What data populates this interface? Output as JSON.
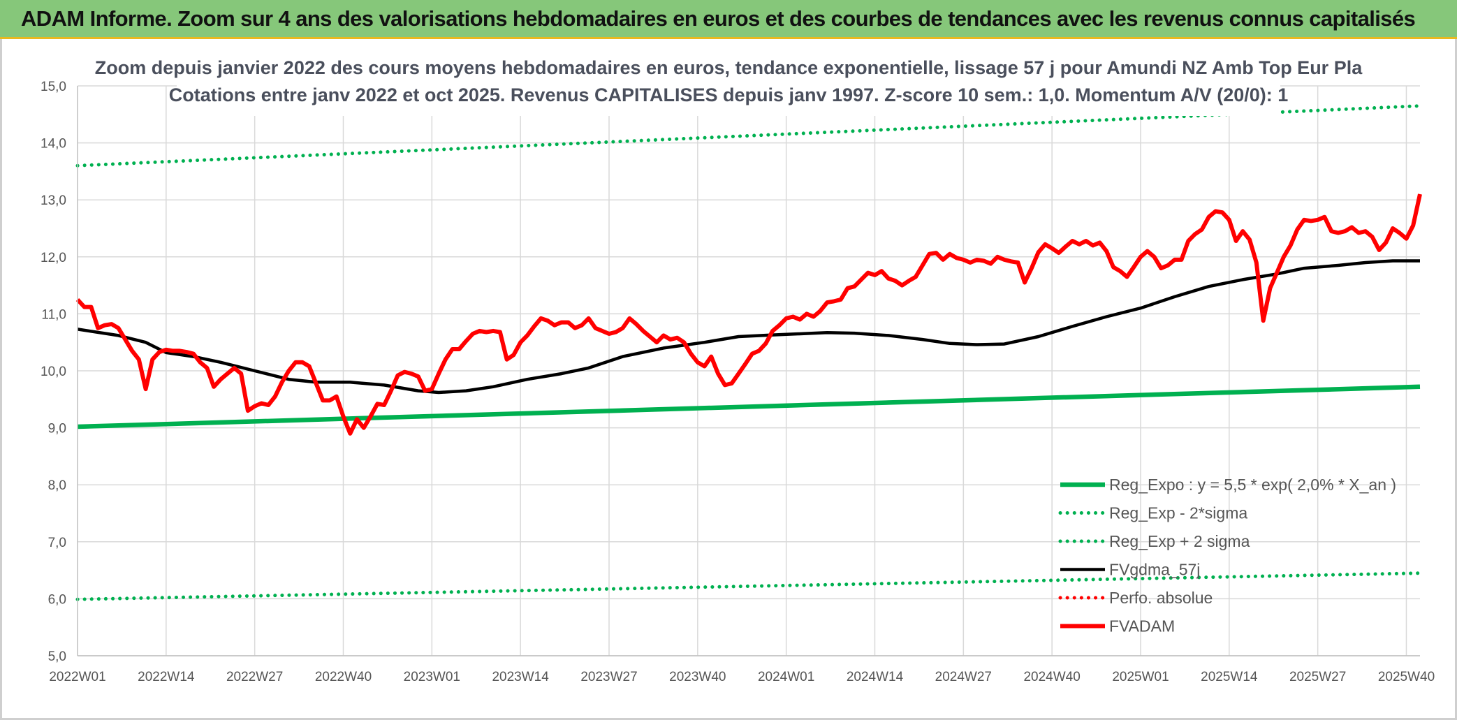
{
  "banner": {
    "title": "ADAM Informe. Zoom sur 4 ans des valorisations hebdomadaires en euros et des courbes de tendances avec les revenus connus capitalisés"
  },
  "colors": {
    "banner_bg": "#86c77a",
    "reg_expo": "#00b050",
    "fvadam": "#ff0000",
    "fvgdma": "#000000",
    "perfo": "#ff0000"
  },
  "chart_data": {
    "type": "line",
    "title": "Zoom depuis janvier 2022 des cours moyens hebdomadaires en euros, tendance exponentielle, lissage 57 j pour Amundi NZ Amb Top Eur Pla",
    "subtitle": "Cotations entre janv 2022 et oct 2025. Revenus CAPITALISES depuis janv 1997. Z-score 10 sem.: 1,0. Momentum A/V (20/0): 1",
    "ylim": [
      5.0,
      15.0
    ],
    "y_ticks": [
      "5,0",
      "6,0",
      "7,0",
      "8,0",
      "9,0",
      "10,0",
      "11,0",
      "12,0",
      "13,0",
      "14,0",
      "15,0"
    ],
    "x_ticks": [
      "2022W01",
      "2022W14",
      "2022W27",
      "2022W40",
      "2023W01",
      "2023W14",
      "2023W27",
      "2023W40",
      "2024W01",
      "2024W14",
      "2024W27",
      "2024W40",
      "2025W01",
      "2025W14",
      "2025W27",
      "2025W40"
    ],
    "grid": true,
    "legend_position": "bottom-right",
    "week_count": 198,
    "series": [
      {
        "name": "Reg_Expo : y = 5,5 * exp( 2,0% *  X_an )",
        "style": "solid-thick",
        "color": "#00b050",
        "points": [
          [
            0,
            9.02
          ],
          [
            197,
            9.72
          ]
        ]
      },
      {
        "name": "Reg_Exp - 2*sigma",
        "style": "dotted",
        "color": "#00b050",
        "points": [
          [
            0,
            5.99
          ],
          [
            197,
            6.45
          ]
        ]
      },
      {
        "name": "Reg_Exp + 2 sigma",
        "style": "dotted",
        "color": "#00b050",
        "points": [
          [
            0,
            13.6
          ],
          [
            197,
            14.65
          ]
        ]
      },
      {
        "name": "FVgdma_57j",
        "style": "solid",
        "color": "#000000",
        "points": [
          [
            0,
            10.73
          ],
          [
            6,
            10.62
          ],
          [
            10,
            10.5
          ],
          [
            13,
            10.32
          ],
          [
            17,
            10.25
          ],
          [
            21,
            10.15
          ],
          [
            26,
            10.0
          ],
          [
            31,
            9.85
          ],
          [
            35,
            9.8
          ],
          [
            40,
            9.8
          ],
          [
            45,
            9.75
          ],
          [
            50,
            9.65
          ],
          [
            53,
            9.62
          ],
          [
            57,
            9.65
          ],
          [
            61,
            9.72
          ],
          [
            66,
            9.85
          ],
          [
            71,
            9.95
          ],
          [
            75,
            10.05
          ],
          [
            80,
            10.25
          ],
          [
            86,
            10.4
          ],
          [
            92,
            10.5
          ],
          [
            97,
            10.6
          ],
          [
            102,
            10.63
          ],
          [
            106,
            10.65
          ],
          [
            110,
            10.67
          ],
          [
            114,
            10.66
          ],
          [
            119,
            10.62
          ],
          [
            124,
            10.55
          ],
          [
            128,
            10.48
          ],
          [
            132,
            10.46
          ],
          [
            136,
            10.47
          ],
          [
            141,
            10.6
          ],
          [
            146,
            10.78
          ],
          [
            151,
            10.95
          ],
          [
            156,
            11.1
          ],
          [
            161,
            11.3
          ],
          [
            166,
            11.48
          ],
          [
            171,
            11.6
          ],
          [
            176,
            11.7
          ],
          [
            180,
            11.8
          ],
          [
            185,
            11.85
          ],
          [
            189,
            11.9
          ],
          [
            193,
            11.93
          ],
          [
            197,
            11.93
          ]
        ]
      },
      {
        "name": "Perfo. absolue",
        "style": "dotted",
        "color": "#ff0000",
        "points": []
      },
      {
        "name": "FVADAM",
        "style": "solid-thick",
        "color": "#ff0000",
        "points": [
          [
            0,
            11.25
          ],
          [
            1,
            11.12
          ],
          [
            2,
            11.12
          ],
          [
            3,
            10.75
          ],
          [
            4,
            10.8
          ],
          [
            5,
            10.82
          ],
          [
            6,
            10.75
          ],
          [
            7,
            10.55
          ],
          [
            8,
            10.35
          ],
          [
            9,
            10.2
          ],
          [
            10,
            9.68
          ],
          [
            11,
            10.2
          ],
          [
            12,
            10.33
          ],
          [
            13,
            10.37
          ],
          [
            14,
            10.35
          ],
          [
            15,
            10.35
          ],
          [
            16,
            10.33
          ],
          [
            17,
            10.3
          ],
          [
            18,
            10.15
          ],
          [
            19,
            10.05
          ],
          [
            20,
            9.72
          ],
          [
            21,
            9.85
          ],
          [
            22,
            9.95
          ],
          [
            23,
            10.05
          ],
          [
            24,
            9.95
          ],
          [
            25,
            9.3
          ],
          [
            26,
            9.38
          ],
          [
            27,
            9.43
          ],
          [
            28,
            9.4
          ],
          [
            29,
            9.55
          ],
          [
            30,
            9.8
          ],
          [
            31,
            10.0
          ],
          [
            32,
            10.15
          ],
          [
            33,
            10.15
          ],
          [
            34,
            10.08
          ],
          [
            35,
            9.78
          ],
          [
            36,
            9.48
          ],
          [
            37,
            9.48
          ],
          [
            38,
            9.55
          ],
          [
            39,
            9.2
          ],
          [
            40,
            8.9
          ],
          [
            41,
            9.15
          ],
          [
            42,
            9.0
          ],
          [
            43,
            9.2
          ],
          [
            44,
            9.42
          ],
          [
            45,
            9.4
          ],
          [
            46,
            9.65
          ],
          [
            47,
            9.92
          ],
          [
            48,
            9.98
          ],
          [
            49,
            9.95
          ],
          [
            50,
            9.9
          ],
          [
            51,
            9.65
          ],
          [
            52,
            9.68
          ],
          [
            53,
            9.95
          ],
          [
            54,
            10.2
          ],
          [
            55,
            10.38
          ],
          [
            56,
            10.38
          ],
          [
            57,
            10.52
          ],
          [
            58,
            10.65
          ],
          [
            59,
            10.7
          ],
          [
            60,
            10.68
          ],
          [
            61,
            10.7
          ],
          [
            62,
            10.68
          ],
          [
            63,
            10.2
          ],
          [
            64,
            10.28
          ],
          [
            65,
            10.5
          ],
          [
            66,
            10.62
          ],
          [
            67,
            10.78
          ],
          [
            68,
            10.92
          ],
          [
            69,
            10.88
          ],
          [
            70,
            10.8
          ],
          [
            71,
            10.85
          ],
          [
            72,
            10.85
          ],
          [
            73,
            10.75
          ],
          [
            74,
            10.8
          ],
          [
            75,
            10.92
          ],
          [
            76,
            10.75
          ],
          [
            77,
            10.7
          ],
          [
            78,
            10.65
          ],
          [
            79,
            10.68
          ],
          [
            80,
            10.75
          ],
          [
            81,
            10.92
          ],
          [
            82,
            10.82
          ],
          [
            83,
            10.7
          ],
          [
            84,
            10.6
          ],
          [
            85,
            10.5
          ],
          [
            86,
            10.62
          ],
          [
            87,
            10.55
          ],
          [
            88,
            10.58
          ],
          [
            89,
            10.5
          ],
          [
            90,
            10.3
          ],
          [
            91,
            10.15
          ],
          [
            92,
            10.08
          ],
          [
            93,
            10.25
          ],
          [
            94,
            9.95
          ],
          [
            95,
            9.75
          ],
          [
            96,
            9.78
          ],
          [
            97,
            9.95
          ],
          [
            98,
            10.12
          ],
          [
            99,
            10.3
          ],
          [
            100,
            10.35
          ],
          [
            101,
            10.48
          ],
          [
            102,
            10.7
          ],
          [
            103,
            10.8
          ],
          [
            104,
            10.92
          ],
          [
            105,
            10.95
          ],
          [
            106,
            10.9
          ],
          [
            107,
            11.0
          ],
          [
            108,
            10.95
          ],
          [
            109,
            11.05
          ],
          [
            110,
            11.2
          ],
          [
            111,
            11.22
          ],
          [
            112,
            11.25
          ],
          [
            113,
            11.45
          ],
          [
            114,
            11.48
          ],
          [
            115,
            11.6
          ],
          [
            116,
            11.72
          ],
          [
            117,
            11.68
          ],
          [
            118,
            11.75
          ],
          [
            119,
            11.62
          ],
          [
            120,
            11.58
          ],
          [
            121,
            11.5
          ],
          [
            122,
            11.58
          ],
          [
            123,
            11.65
          ],
          [
            124,
            11.85
          ],
          [
            125,
            12.05
          ],
          [
            126,
            12.07
          ],
          [
            127,
            11.95
          ],
          [
            128,
            12.05
          ],
          [
            129,
            11.98
          ],
          [
            130,
            11.95
          ],
          [
            131,
            11.9
          ],
          [
            132,
            11.95
          ],
          [
            133,
            11.93
          ],
          [
            134,
            11.88
          ],
          [
            135,
            12.0
          ],
          [
            136,
            11.95
          ],
          [
            137,
            11.92
          ],
          [
            138,
            11.9
          ],
          [
            139,
            11.55
          ],
          [
            140,
            11.8
          ],
          [
            141,
            12.08
          ],
          [
            142,
            12.22
          ],
          [
            143,
            12.15
          ],
          [
            144,
            12.07
          ],
          [
            145,
            12.18
          ],
          [
            146,
            12.28
          ],
          [
            147,
            12.22
          ],
          [
            148,
            12.28
          ],
          [
            149,
            12.2
          ],
          [
            150,
            12.25
          ],
          [
            151,
            12.1
          ],
          [
            152,
            11.82
          ],
          [
            153,
            11.75
          ],
          [
            154,
            11.65
          ],
          [
            155,
            11.82
          ],
          [
            156,
            12.0
          ],
          [
            157,
            12.1
          ],
          [
            158,
            12.0
          ],
          [
            159,
            11.8
          ],
          [
            160,
            11.85
          ],
          [
            161,
            11.95
          ],
          [
            162,
            11.95
          ],
          [
            163,
            12.28
          ],
          [
            164,
            12.4
          ],
          [
            165,
            12.48
          ],
          [
            166,
            12.7
          ],
          [
            167,
            12.8
          ],
          [
            168,
            12.78
          ],
          [
            169,
            12.65
          ],
          [
            170,
            12.28
          ],
          [
            171,
            12.45
          ],
          [
            172,
            12.3
          ],
          [
            173,
            11.9
          ],
          [
            174,
            10.88
          ],
          [
            175,
            11.45
          ],
          [
            176,
            11.72
          ],
          [
            177,
            12.0
          ],
          [
            178,
            12.2
          ],
          [
            179,
            12.48
          ],
          [
            180,
            12.65
          ],
          [
            181,
            12.63
          ],
          [
            182,
            12.65
          ],
          [
            183,
            12.7
          ],
          [
            184,
            12.45
          ],
          [
            185,
            12.42
          ],
          [
            186,
            12.45
          ],
          [
            187,
            12.52
          ],
          [
            188,
            12.42
          ],
          [
            189,
            12.45
          ],
          [
            190,
            12.35
          ],
          [
            191,
            12.12
          ],
          [
            192,
            12.25
          ],
          [
            193,
            12.5
          ],
          [
            194,
            12.42
          ],
          [
            195,
            12.32
          ],
          [
            196,
            12.55
          ],
          [
            197,
            13.1
          ]
        ]
      }
    ]
  }
}
